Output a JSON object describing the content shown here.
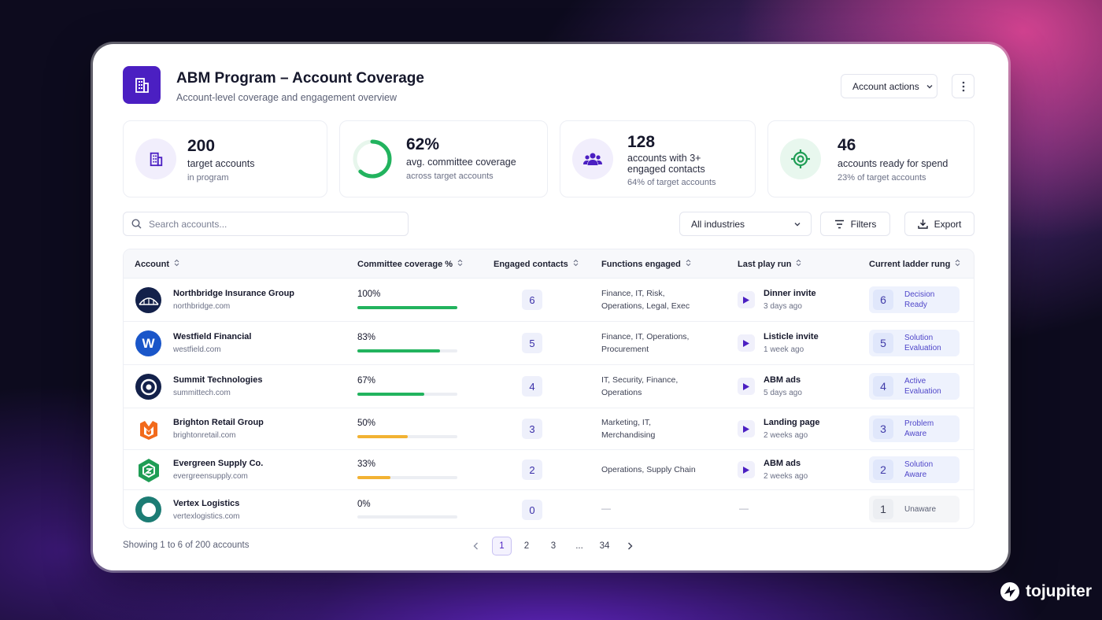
{
  "header": {
    "title": "ABM Program – Account Coverage",
    "subtitle": "Account-level coverage and engagement overview",
    "account_actions_label": "Account actions"
  },
  "stats": {
    "targets": {
      "value": "200",
      "label": "target accounts",
      "sub": "in program"
    },
    "coverage": {
      "value": "62%",
      "label": "avg. committee coverage",
      "sub": "across target accounts",
      "ring_fraction": 0.62
    },
    "engaged": {
      "value": "128",
      "label_line1": "accounts with 3+",
      "label_line2": "engaged contacts",
      "sub": "64% of target accounts"
    },
    "ready": {
      "value": "46",
      "label": "accounts ready for spend",
      "sub": "23% of target accounts"
    }
  },
  "toolbar": {
    "search_placeholder": "Search accounts...",
    "industry_selected": "All industries",
    "filters_label": "Filters",
    "export_label": "Export"
  },
  "table": {
    "columns": {
      "account": "Account",
      "coverage": "Committee coverage %",
      "engaged": "Engaged contacts",
      "functions": "Functions engaged",
      "last_play": "Last play run",
      "ladder": "Current ladder rung"
    },
    "rows": [
      {
        "name": "Northbridge Insurance Group",
        "domain": "northbridge.com",
        "coverage": "100%",
        "coverage_fraction": 1.0,
        "engaged": "6",
        "functions_line1": "Finance, IT, Risk,",
        "functions_line2": "Operations, Legal, Exec",
        "play": "Dinner invite",
        "play_when": "3 days ago",
        "rung": "6",
        "rung_line1": "Decision",
        "rung_line2": "Ready"
      },
      {
        "name": "Westfield Financial",
        "domain": "westfield.com",
        "coverage": "83%",
        "coverage_fraction": 0.83,
        "engaged": "5",
        "functions_line1": "Finance, IT, Operations,",
        "functions_line2": "Procurement",
        "play": "Listicle invite",
        "play_when": "1 week ago",
        "rung": "5",
        "rung_line1": "Solution",
        "rung_line2": "Evaluation"
      },
      {
        "name": "Summit Technologies",
        "domain": "summittech.com",
        "coverage": "67%",
        "coverage_fraction": 0.67,
        "engaged": "4",
        "functions_line1": "IT, Security, Finance,",
        "functions_line2": "Operations",
        "play": "ABM ads",
        "play_when": "5 days ago",
        "rung": "4",
        "rung_line1": "Active",
        "rung_line2": "Evaluation"
      },
      {
        "name": "Brighton Retail Group",
        "domain": "brightonretail.com",
        "coverage": "50%",
        "coverage_fraction": 0.5,
        "engaged": "3",
        "functions_line1": "Marketing, IT,",
        "functions_line2": "Merchandising",
        "play": "Landing page",
        "play_when": "2 weeks ago",
        "rung": "3",
        "rung_line1": "Problem",
        "rung_line2": "Aware"
      },
      {
        "name": "Evergreen Supply Co.",
        "domain": "evergreensupply.com",
        "coverage": "33%",
        "coverage_fraction": 0.33,
        "engaged": "2",
        "functions_line1": "Operations, Supply Chain",
        "functions_line2": "",
        "play": "ABM ads",
        "play_when": "2 weeks ago",
        "rung": "2",
        "rung_line1": "Solution",
        "rung_line2": "Aware"
      },
      {
        "name": "Vertex Logistics",
        "domain": "vertexlogistics.com",
        "coverage": "0%",
        "coverage_fraction": 0.0,
        "engaged": "0",
        "functions_dash": "—",
        "play_dash": "—",
        "rung": "1",
        "rung_line1": "Unaware"
      }
    ]
  },
  "footer": {
    "showing": "Showing 1 to 6 of 200 accounts",
    "pages": [
      "1",
      "2",
      "3",
      "...",
      "34"
    ],
    "current_page": "1"
  },
  "brand": {
    "name": "tojupiter"
  },
  "colors": {
    "accent": "#4b1fc2",
    "green": "#22b35e",
    "amber": "#f2b233",
    "track": "#eceef3"
  },
  "icons": [
    "building-icon",
    "ring-chart",
    "users-icon",
    "target-icon",
    "search-icon",
    "chevron-down-icon",
    "filter-icon",
    "download-icon",
    "sort-icon",
    "play-icon",
    "chevron-left-icon",
    "chevron-right-icon",
    "more-vertical-icon"
  ]
}
